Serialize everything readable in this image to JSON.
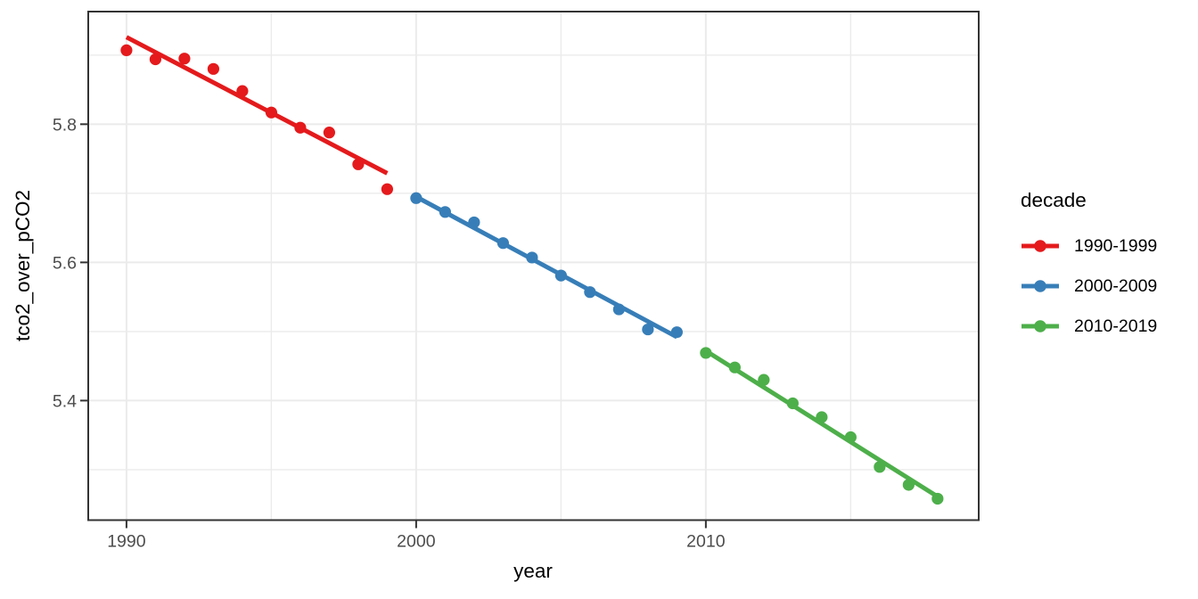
{
  "figure": {
    "background": "#ffffff"
  },
  "theme": {
    "panel_background": "#ffffff",
    "grid_color": "#ebebeb",
    "panel_border_color": "#333333",
    "tick_color": "#333333",
    "tick_label_color": "#4d4d4d",
    "axis_title_color": "#000000",
    "legend_text_color": "#000000"
  },
  "chart_data": {
    "type": "scatter",
    "title": "",
    "xlabel": "year",
    "ylabel": "tco2_over_pCO2",
    "legend_title": "decade",
    "legend_position": "right",
    "grid": true,
    "x_domain": [
      1988.68,
      2019.42
    ],
    "y_domain": [
      5.227,
      5.963
    ],
    "x_ticks": [
      {
        "value": 1990,
        "label": "1990"
      },
      {
        "value": 2000,
        "label": "2000"
      },
      {
        "value": 2010,
        "label": "2010"
      }
    ],
    "y_ticks": [
      {
        "value": 5.8,
        "label": "5.8"
      },
      {
        "value": 5.6,
        "label": "5.6"
      },
      {
        "value": 5.4,
        "label": "5.4"
      }
    ],
    "x_minor_gridlines": [
      1995,
      2005,
      2015
    ],
    "y_minor_gridlines": [
      5.9,
      5.7,
      5.5,
      5.3
    ],
    "series": [
      {
        "name": "1990-1999",
        "color": "#E41A1C",
        "x": [
          1990,
          1991,
          1992,
          1993,
          1994,
          1995,
          1996,
          1997,
          1998,
          1999
        ],
        "y": [
          5.907,
          5.894,
          5.895,
          5.88,
          5.848,
          5.817,
          5.795,
          5.788,
          5.742,
          5.706
        ],
        "trend": {
          "x": [
            1990,
            1999
          ],
          "y": [
            5.926,
            5.729
          ]
        }
      },
      {
        "name": "2000-2009",
        "color": "#377EB8",
        "x": [
          2000,
          2001,
          2002,
          2003,
          2004,
          2005,
          2006,
          2007,
          2008,
          2009
        ],
        "y": [
          5.693,
          5.673,
          5.658,
          5.628,
          5.607,
          5.581,
          5.557,
          5.532,
          5.503,
          5.499
        ],
        "trend": {
          "x": [
            2000,
            2009
          ],
          "y": [
            5.695,
            5.492
          ]
        }
      },
      {
        "name": "2010-2019",
        "color": "#4DAF4A",
        "x": [
          2010,
          2011,
          2012,
          2013,
          2014,
          2015,
          2016,
          2017,
          2018
        ],
        "y": [
          5.469,
          5.448,
          5.43,
          5.396,
          5.376,
          5.347,
          5.304,
          5.278,
          5.258
        ],
        "trend": {
          "x": [
            2010,
            2018
          ],
          "y": [
            5.472,
            5.261
          ]
        }
      }
    ]
  }
}
